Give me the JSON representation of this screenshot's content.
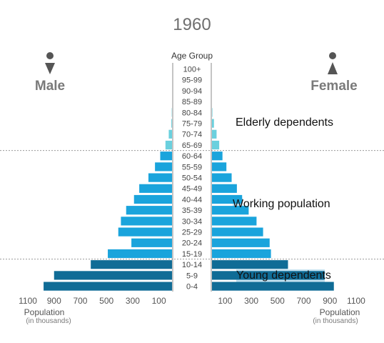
{
  "chart_data": {
    "type": "bar",
    "title": "1960",
    "center_label": "Age Group",
    "left_label": "Male",
    "right_label": "Female",
    "age_groups": [
      "100+",
      "95-99",
      "90-94",
      "85-89",
      "80-84",
      "75-79",
      "70-74",
      "65-69",
      "60-64",
      "55-59",
      "50-54",
      "45-49",
      "40-44",
      "35-39",
      "30-34",
      "25-29",
      "20-24",
      "15-19",
      "10-14",
      "5-9",
      "0-4"
    ],
    "series": [
      {
        "name": "Male",
        "values": [
          0,
          0,
          0,
          0,
          2,
          5,
          25,
          50,
          90,
          130,
          180,
          250,
          290,
          350,
          390,
          410,
          310,
          490,
          620,
          900,
          980
        ]
      },
      {
        "name": "Female",
        "values": [
          0,
          0,
          0,
          0,
          3,
          15,
          35,
          55,
          80,
          110,
          150,
          190,
          230,
          280,
          340,
          390,
          440,
          450,
          580,
          860,
          930
        ]
      }
    ],
    "segments": [
      {
        "label": "Elderly dependents",
        "from": "100+",
        "to": "65-69",
        "color": "#6ad0de"
      },
      {
        "label": "Working population",
        "from": "60-64",
        "to": "15-19",
        "color": "#1aa4dc"
      },
      {
        "label": "Young dependents",
        "from": "10-14",
        "to": "0-4",
        "color": "#106c96"
      }
    ],
    "x_ticks_left": [
      "1100",
      "900",
      "700",
      "500",
      "300",
      "100"
    ],
    "x_ticks_right": [
      "100",
      "300",
      "500",
      "700",
      "900",
      "1100"
    ],
    "tick_values": [
      1100,
      900,
      700,
      500,
      300,
      100
    ],
    "xlabel": "Population",
    "xlabel_sub": "(in thousands)",
    "xlim": [
      0,
      1100
    ],
    "grid": false,
    "colors": {
      "title": "#6e6e6e",
      "axis_text": "#555555",
      "divider": "#9a9a9a",
      "segment_highlight": "#b9dced"
    }
  }
}
